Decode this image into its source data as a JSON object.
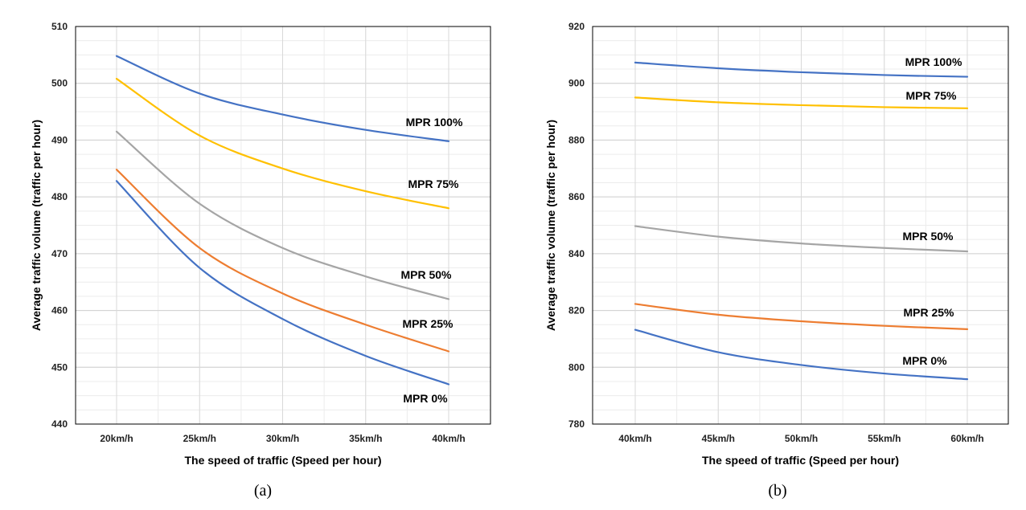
{
  "chart_data": [
    {
      "type": "line",
      "caption": "(a)",
      "xlabel": "The speed of traffic (Speed per hour)",
      "ylabel": "Average  traffic volume (traffic per hour)",
      "x": [
        20,
        25,
        30,
        35,
        40
      ],
      "x_tick_labels": [
        "20km/h",
        "25km/h",
        "30km/h",
        "35km/h",
        "40km/h"
      ],
      "ylim": [
        440,
        510
      ],
      "y_ticks": [
        440,
        450,
        460,
        470,
        480,
        490,
        500,
        510
      ],
      "grid": true,
      "series": [
        {
          "name": "MPR 100%",
          "color": "#4472C4",
          "values": [
            504.8,
            498.2,
            494.5,
            491.8,
            489.8
          ]
        },
        {
          "name": "MPR 75%",
          "color": "#FFC000",
          "values": [
            500.8,
            490.8,
            485.0,
            481.0,
            478.0
          ]
        },
        {
          "name": "MPR 50%",
          "color": "#A5A5A5",
          "values": [
            491.5,
            478.8,
            471.0,
            466.0,
            462.0
          ]
        },
        {
          "name": "MPR 25%",
          "color": "#ED7D31",
          "values": [
            484.8,
            471.0,
            463.0,
            457.5,
            452.8
          ]
        },
        {
          "name": "MPR 0%",
          "color": "#4472C4",
          "values": [
            482.8,
            467.5,
            458.5,
            452.0,
            447.0
          ]
        }
      ]
    },
    {
      "type": "line",
      "caption": "(b)",
      "xlabel": "The speed of traffic (Speed per hour)",
      "ylabel": "Average  traffic volume (traffic per hour)",
      "x": [
        40,
        45,
        50,
        55,
        60
      ],
      "x_tick_labels": [
        "40km/h",
        "45km/h",
        "50km/h",
        "55km/h",
        "60km/h"
      ],
      "ylim": [
        780,
        920
      ],
      "y_ticks": [
        780,
        800,
        820,
        840,
        860,
        880,
        900,
        920
      ],
      "grid": true,
      "series": [
        {
          "name": "MPR 100%",
          "color": "#4472C4",
          "values": [
            907.3,
            905.3,
            903.9,
            902.9,
            902.3
          ]
        },
        {
          "name": "MPR 75%",
          "color": "#FFC000",
          "values": [
            895.0,
            893.3,
            892.3,
            891.6,
            891.2
          ]
        },
        {
          "name": "MPR 50%",
          "color": "#A5A5A5",
          "values": [
            849.7,
            846.0,
            843.6,
            842.0,
            840.8
          ]
        },
        {
          "name": "MPR 25%",
          "color": "#ED7D31",
          "values": [
            822.3,
            818.5,
            816.2,
            814.6,
            813.4
          ]
        },
        {
          "name": "MPR 0%",
          "color": "#4472C4",
          "values": [
            813.2,
            805.3,
            800.8,
            797.8,
            795.8
          ]
        }
      ]
    }
  ]
}
